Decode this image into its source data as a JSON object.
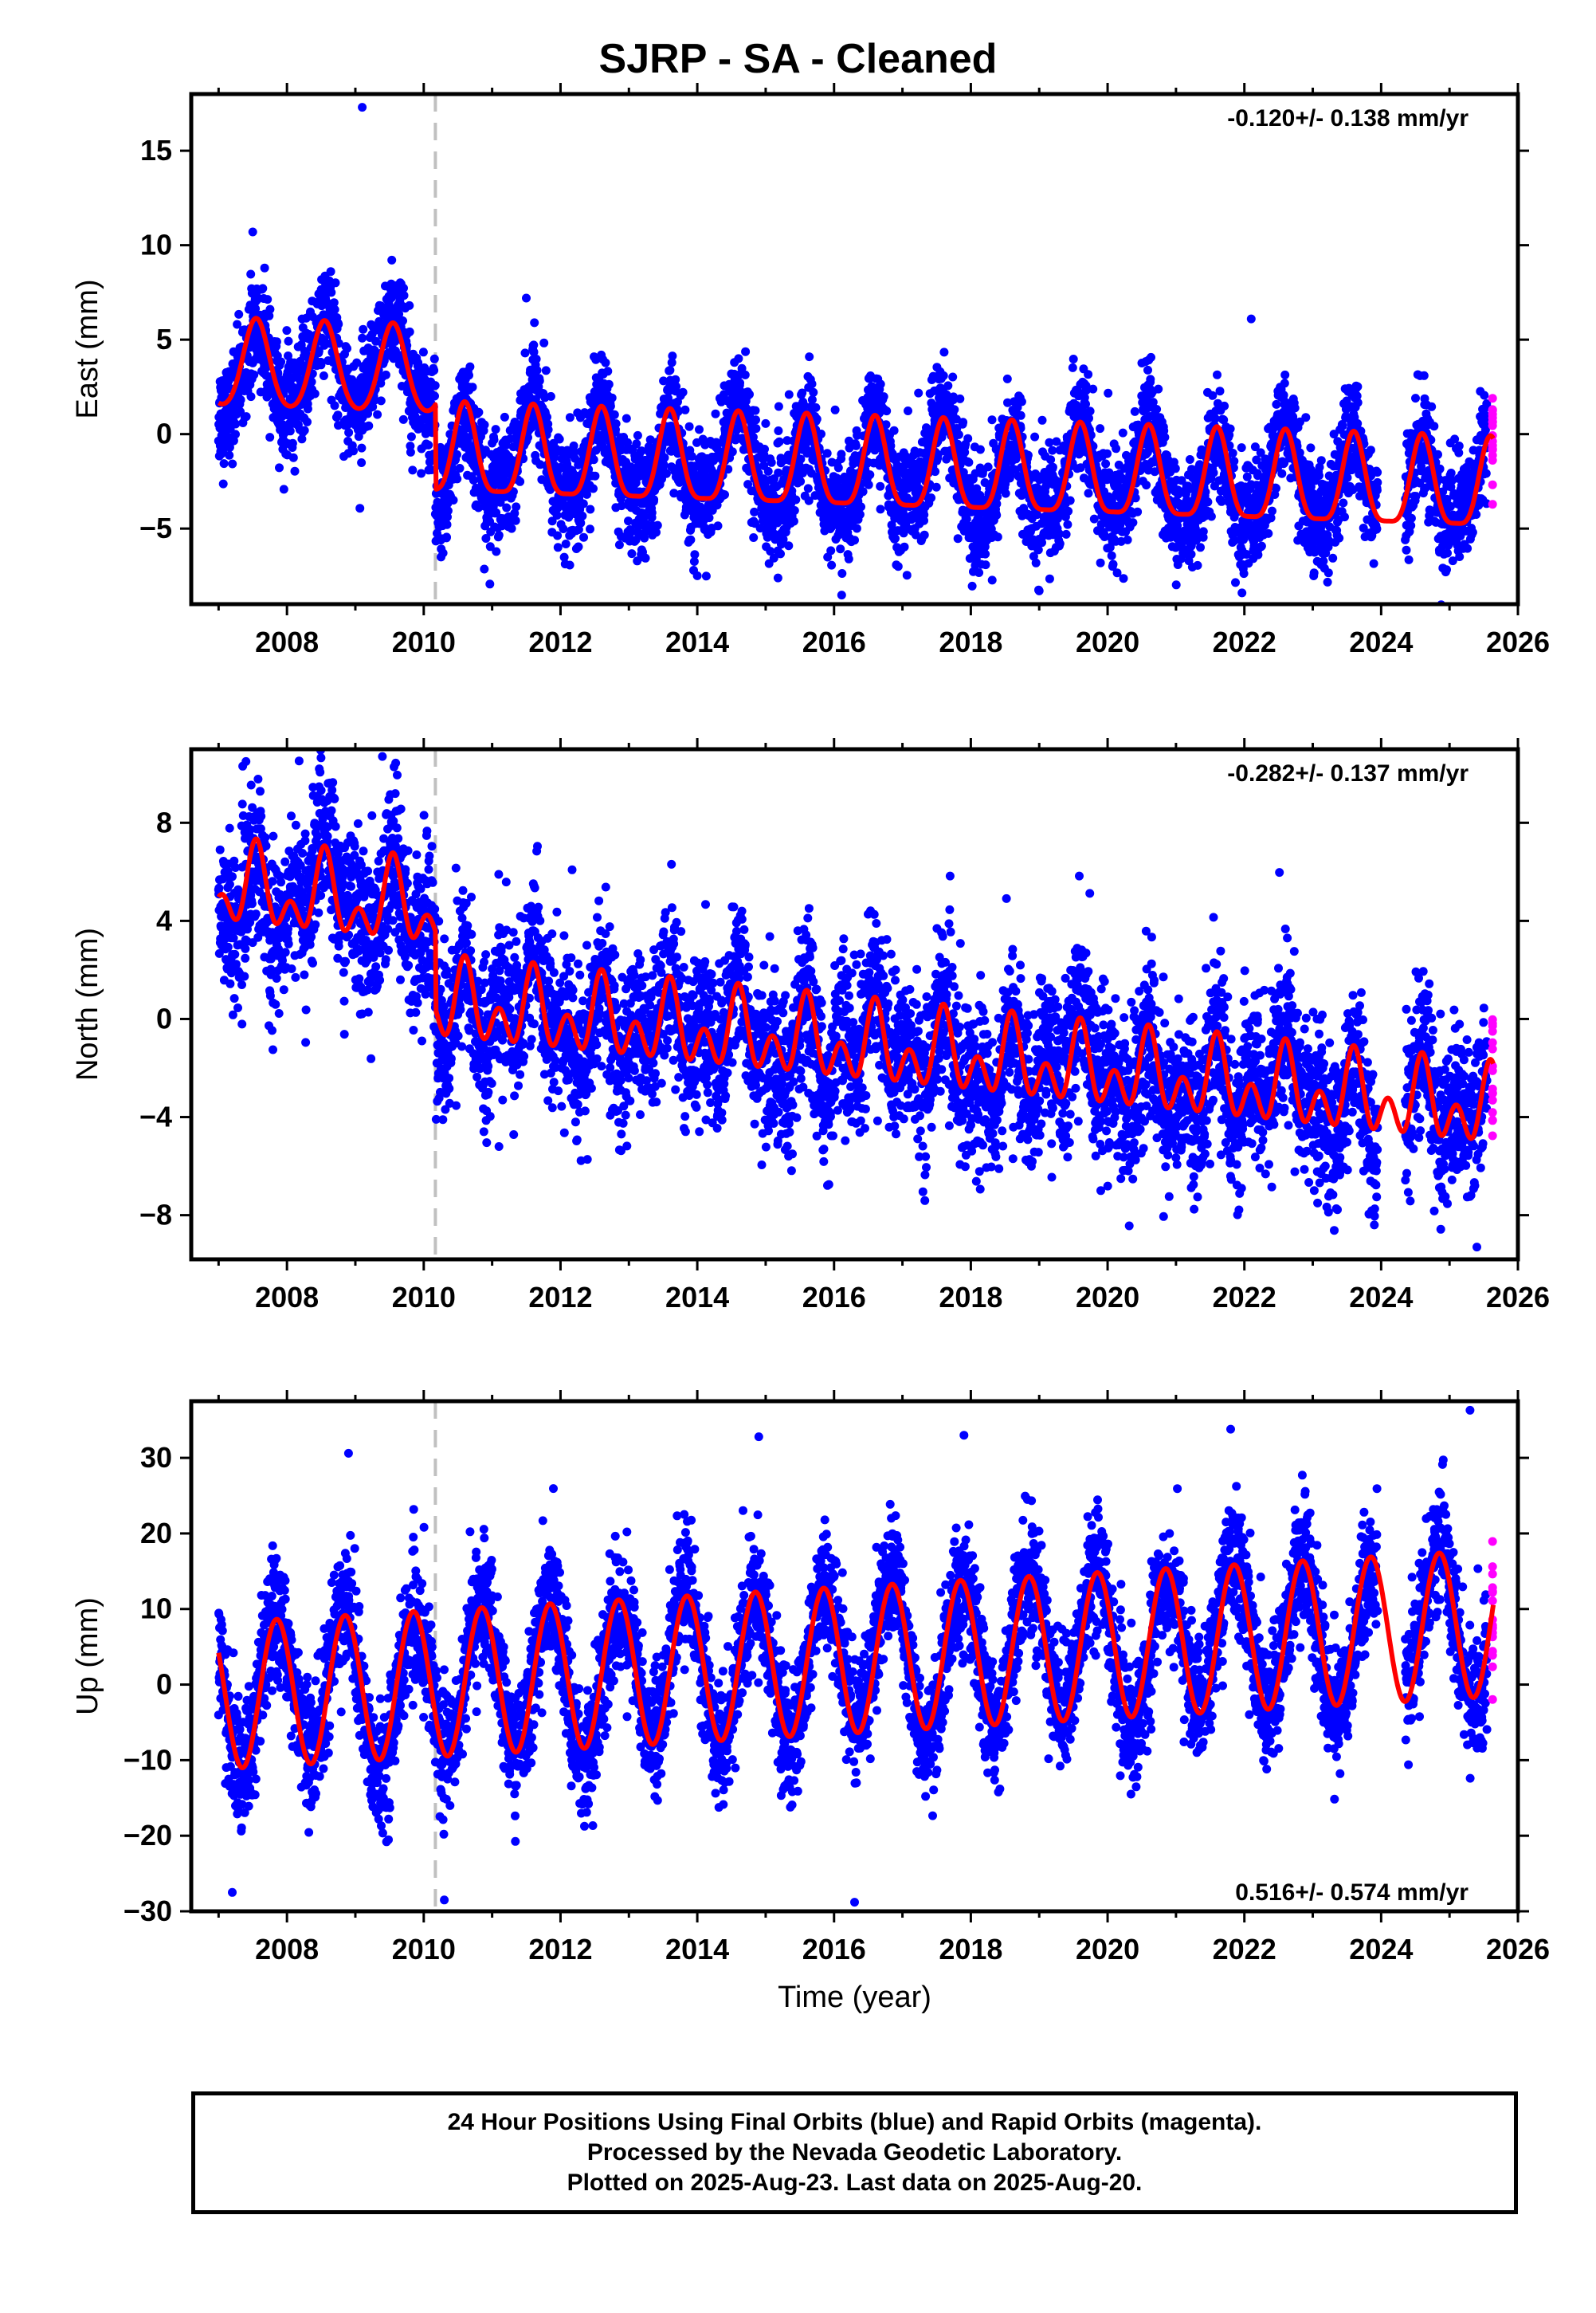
{
  "title": "SJRP  - SA - Cleaned",
  "footer": {
    "line1": "24 Hour Positions Using Final Orbits (blue) and Rapid Orbits (magenta).",
    "line2": "Processed by the Nevada Geodetic Laboratory.",
    "line3": "Plotted on 2025-Aug-23. Last data on 2025-Aug-20."
  },
  "colors": {
    "final_orbits": "#0000ff",
    "rapid_orbits": "#ff00ff",
    "model_fit": "#ff0000",
    "event_line": "#c0c0c0"
  },
  "chart_data": [
    {
      "type": "scatter",
      "name": "east",
      "ylabel": "East (mm)",
      "xlabel": "",
      "xlim": [
        2006.6,
        2026.0
      ],
      "ylim": [
        -9,
        18
      ],
      "x_ticks": [
        2008,
        2010,
        2012,
        2014,
        2016,
        2018,
        2020,
        2022,
        2024,
        2026
      ],
      "y_ticks": [
        -5,
        0,
        5,
        10,
        15
      ],
      "rate_text": "-0.120+/- 0.138 mm/yr",
      "rate_position": "top-right",
      "event_line_year": 2010.17,
      "data_start": 2007.0,
      "data_end": 2025.64,
      "rapid_start": 2025.55,
      "gap": [
        2023.95,
        2024.35
      ],
      "trend_mm_per_yr": -0.12,
      "model": {
        "segments": [
          {
            "start": 2007.0,
            "end": 2010.17,
            "offset": 3.6,
            "annual_amp": 2.3,
            "annual_phase_peak": 0.55,
            "semi_amp": 0.3
          },
          {
            "start": 2010.17,
            "end": 2025.64,
            "offset": -0.8,
            "annual_amp": 2.35,
            "annual_phase_peak": 0.6,
            "semi_amp": 0.6
          }
        ]
      },
      "scatter_sigma": 1.4,
      "outliers": [
        [
          2009.1,
          17.3
        ],
        [
          2007.5,
          10.7
        ],
        [
          2011.5,
          7.2
        ],
        [
          2022.1,
          6.1
        ],
        [
          2019.0,
          -8.3
        ],
        [
          2014.0,
          -7.5
        ]
      ]
    },
    {
      "type": "scatter",
      "name": "north",
      "ylabel": "North (mm)",
      "xlabel": "",
      "xlim": [
        2006.6,
        2026.0
      ],
      "ylim": [
        -9.8,
        11
      ],
      "x_ticks": [
        2008,
        2010,
        2012,
        2014,
        2016,
        2018,
        2020,
        2022,
        2024,
        2026
      ],
      "y_ticks": [
        -8,
        -4,
        0,
        4,
        8
      ],
      "rate_text": "-0.282+/- 0.137 mm/yr",
      "rate_position": "top-right",
      "event_line_year": 2010.17,
      "data_start": 2007.0,
      "data_end": 2025.64,
      "rapid_start": 2025.55,
      "gap": [
        2023.95,
        2024.35
      ],
      "trend_mm_per_yr": -0.282,
      "model": {
        "segments": [
          {
            "start": 2007.0,
            "end": 2010.17,
            "offset": 5.3,
            "annual_amp": 1.2,
            "annual_phase_peak": 0.55,
            "semi_amp": 1.0
          },
          {
            "start": 2010.17,
            "end": 2025.64,
            "offset": 1.5,
            "annual_amp": 1.0,
            "annual_phase_peak": 0.6,
            "semi_amp": 1.1
          }
        ]
      },
      "scatter_sigma": 1.6,
      "outliers": [
        [
          2007.4,
          10.5
        ],
        [
          2025.4,
          -9.3
        ],
        [
          2023.9,
          -8.4
        ],
        [
          2011.1,
          -5.2
        ],
        [
          2019.9,
          -7.0
        ]
      ]
    },
    {
      "type": "scatter",
      "name": "up",
      "ylabel": "Up (mm)",
      "xlabel": "Time (year)",
      "xlim": [
        2006.6,
        2026.0
      ],
      "ylim": [
        -30,
        37.5
      ],
      "x_ticks": [
        2008,
        2010,
        2012,
        2014,
        2016,
        2018,
        2020,
        2022,
        2024,
        2026
      ],
      "y_ticks": [
        -30,
        -20,
        -10,
        0,
        10,
        20,
        30
      ],
      "rate_text": "0.516+/- 0.574 mm/yr",
      "rate_position": "bottom-right",
      "event_line_year": 2010.17,
      "data_start": 2007.0,
      "data_end": 2025.64,
      "rapid_start": 2025.55,
      "gap": [
        2023.95,
        2024.35
      ],
      "trend_mm_per_yr": 0.516,
      "model": {
        "segments": [
          {
            "start": 2007.0,
            "end": 2025.64,
            "offset": -1.5,
            "annual_amp": 9.7,
            "annual_phase_peak": 0.85,
            "semi_amp": 0.0
          }
        ]
      },
      "scatter_sigma": 4.0,
      "outliers": [
        [
          2025.3,
          36.3
        ],
        [
          2021.8,
          33.8
        ],
        [
          2017.9,
          33.0
        ],
        [
          2014.9,
          32.8
        ],
        [
          2008.9,
          30.6
        ],
        [
          2010.3,
          -28.5
        ],
        [
          2016.3,
          -28.8
        ],
        [
          2007.2,
          -27.5
        ]
      ]
    }
  ]
}
